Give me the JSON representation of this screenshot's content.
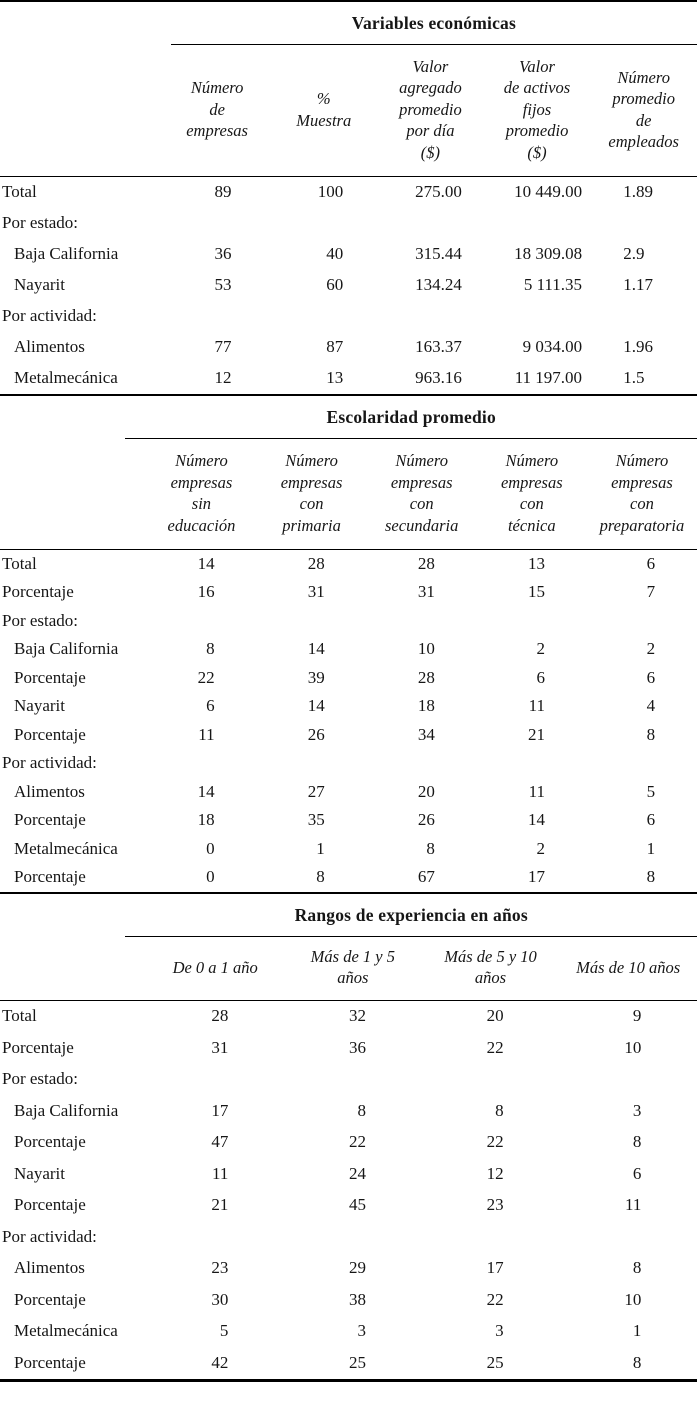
{
  "page": {
    "background": "#ffffff",
    "text_color": "#161616",
    "rule_color": "#000000"
  },
  "tables": [
    {
      "title": "Variables económicas",
      "column_headers": [
        "Número\nde\nempresas",
        "%\nMuestra",
        "Valor\nagregado\npromedio\npor día\n($)",
        "Valor\nde activos\nfijos\npromedio\n($)",
        "Número\npromedio\nde\nempleados"
      ],
      "rows": [
        {
          "label": "Total",
          "indent": false,
          "values": [
            "89",
            "100",
            "275.00",
            "10 449.00",
            "1.89"
          ]
        },
        {
          "label": "Por estado:",
          "indent": false,
          "values": [
            "",
            "",
            "",
            "",
            ""
          ]
        },
        {
          "label": "Baja California",
          "indent": true,
          "values": [
            "36",
            "40",
            "315.44",
            "18 309.08",
            "2.9"
          ]
        },
        {
          "label": "Nayarit",
          "indent": true,
          "values": [
            "53",
            "60",
            "134.24",
            "5 111.35",
            "1.17"
          ]
        },
        {
          "label": "Por actividad:",
          "indent": false,
          "values": [
            "",
            "",
            "",
            "",
            ""
          ]
        },
        {
          "label": "Alimentos",
          "indent": true,
          "values": [
            "77",
            "87",
            "163.37",
            "9 034.00",
            "1.96"
          ]
        },
        {
          "label": "Metalmecánica",
          "indent": true,
          "values": [
            "12",
            "13",
            "963.16",
            "11 197.00",
            "1.5"
          ]
        }
      ]
    },
    {
      "title": "Escolaridad promedio",
      "column_headers": [
        "Número\nempresas\nsin\neducación",
        "Número\nempresas\ncon\nprimaria",
        "Número\nempresas\ncon\nsecundaria",
        "Número\nempresas\ncon\ntécnica",
        "Número\nempresas\ncon\npreparatoria"
      ],
      "rows": [
        {
          "label": "Total",
          "indent": false,
          "values": [
            "14",
            "28",
            "28",
            "13",
            "6"
          ]
        },
        {
          "label": "Porcentaje",
          "indent": false,
          "values": [
            "16",
            "31",
            "31",
            "15",
            "7"
          ]
        },
        {
          "label": "Por estado:",
          "indent": false,
          "values": [
            "",
            "",
            "",
            "",
            ""
          ]
        },
        {
          "label": "Baja California",
          "indent": true,
          "values": [
            "8",
            "14",
            "10",
            "2",
            "2"
          ]
        },
        {
          "label": "Porcentaje",
          "indent": true,
          "values": [
            "22",
            "39",
            "28",
            "6",
            "6"
          ]
        },
        {
          "label": "Nayarit",
          "indent": true,
          "values": [
            "6",
            "14",
            "18",
            "11",
            "4"
          ]
        },
        {
          "label": "Porcentaje",
          "indent": true,
          "values": [
            "11",
            "26",
            "34",
            "21",
            "8"
          ]
        },
        {
          "label": "Por actividad:",
          "indent": false,
          "values": [
            "",
            "",
            "",
            "",
            ""
          ]
        },
        {
          "label": "Alimentos",
          "indent": true,
          "values": [
            "14",
            "27",
            "20",
            "11",
            "5"
          ]
        },
        {
          "label": "Porcentaje",
          "indent": true,
          "values": [
            "18",
            "35",
            "26",
            "14",
            "6"
          ]
        },
        {
          "label": "Metalmecánica",
          "indent": true,
          "values": [
            "0",
            "1",
            "8",
            "2",
            "1"
          ]
        },
        {
          "label": "Porcentaje",
          "indent": true,
          "values": [
            "0",
            "8",
            "67",
            "17",
            "8"
          ]
        }
      ]
    },
    {
      "title": "Rangos de experiencia en años",
      "column_headers": [
        "De 0 a 1 año",
        "Más de 1 y 5\naños",
        "Más de 5 y 10\naños",
        "Más de 10 años"
      ],
      "rows": [
        {
          "label": "Total",
          "indent": false,
          "values": [
            "28",
            "32",
            "20",
            "9"
          ]
        },
        {
          "label": "Porcentaje",
          "indent": false,
          "values": [
            "31",
            "36",
            "22",
            "10"
          ]
        },
        {
          "label": "Por estado:",
          "indent": false,
          "values": [
            "",
            "",
            "",
            ""
          ]
        },
        {
          "label": "Baja California",
          "indent": true,
          "values": [
            "17",
            "8",
            "8",
            "3"
          ]
        },
        {
          "label": "Porcentaje",
          "indent": true,
          "values": [
            "47",
            "22",
            "22",
            "8"
          ]
        },
        {
          "label": "Nayarit",
          "indent": true,
          "values": [
            "11",
            "24",
            "12",
            "6"
          ]
        },
        {
          "label": "Porcentaje",
          "indent": true,
          "values": [
            "21",
            "45",
            "23",
            "11"
          ]
        },
        {
          "label": "Por actividad:",
          "indent": false,
          "values": [
            "",
            "",
            "",
            ""
          ]
        },
        {
          "label": "Alimentos",
          "indent": true,
          "values": [
            "23",
            "29",
            "17",
            "8"
          ]
        },
        {
          "label": "Porcentaje",
          "indent": true,
          "values": [
            "30",
            "38",
            "22",
            "10"
          ]
        },
        {
          "label": "Metalmecánica",
          "indent": true,
          "values": [
            "5",
            "3",
            "3",
            "1"
          ]
        },
        {
          "label": "Porcentaje",
          "indent": true,
          "values": [
            "42",
            "25",
            "25",
            "8"
          ]
        }
      ]
    }
  ]
}
